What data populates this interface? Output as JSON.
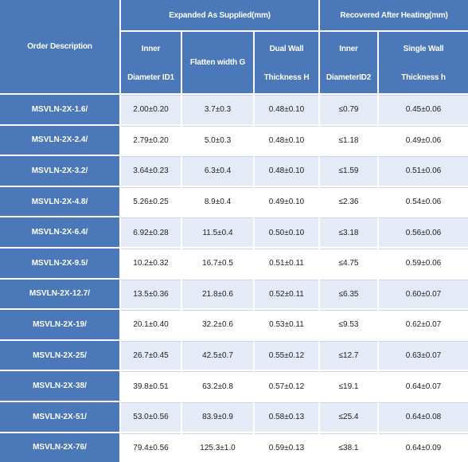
{
  "headers": {
    "order": "Order Description",
    "expanded": "Expanded As Supplied(mm)",
    "recovered": "Recovered After Heating(mm)",
    "col1": [
      "Inner",
      "Diameter ID1"
    ],
    "col2": "Flatten width G",
    "col3": [
      "Dual Wall",
      "Thickness H"
    ],
    "col4": [
      "Inner",
      "DiameterID2"
    ],
    "col5": [
      "Single Wall",
      "Thickness h"
    ]
  },
  "rows": [
    {
      "name": "MSVLN-2X-1.6/",
      "id1": "2.00±0.20",
      "g": "3.7±0.3",
      "h": "0.48±0.10",
      "id2": "≤0.79",
      "t": "0.45±0.06"
    },
    {
      "name": "MSVLN-2X-2.4/",
      "id1": "2.79±0.20",
      "g": "5.0±0.3",
      "h": "0.48±0.10",
      "id2": "≤1.18",
      "t": "0.49±0.06"
    },
    {
      "name": "MSVLN-2X-3.2/",
      "id1": "3.64±0.23",
      "g": "6.3±0.4",
      "h": "0.48±0.10",
      "id2": "≤1.59",
      "t": "0.51±0.06"
    },
    {
      "name": "MSVLN-2X-4.8/",
      "id1": "5.26±0.25",
      "g": "8.9±0.4",
      "h": "0.49±0.10",
      "id2": "≤2.36",
      "t": "0.54±0.06"
    },
    {
      "name": "MSVLN-2X-6.4/",
      "id1": "6.92±0.28",
      "g": "11.5±0.4",
      "h": "0.50±0.10",
      "id2": "≤3.18",
      "t": "0.56±0.06"
    },
    {
      "name": "MSVLN-2X-9.5/",
      "id1": "10.2±0.32",
      "g": "16.7±0.5",
      "h": "0.51±0.11",
      "id2": "≤4.75",
      "t": "0.59±0.06"
    },
    {
      "name": "MSVLN-2X-12.7/",
      "id1": "13.5±0.36",
      "g": "21.8±0.6",
      "h": "0.52±0.11",
      "id2": "≤6.35",
      "t": "0.60±0.07"
    },
    {
      "name": "MSVLN-2X-19/",
      "id1": "20.1±0.40",
      "g": "32.2±0.6",
      "h": "0.53±0.11",
      "id2": "≤9.53",
      "t": "0.62±0.07"
    },
    {
      "name": "MSVLN-2X-25/",
      "id1": "26.7±0.45",
      "g": "42.5±0.7",
      "h": "0.55±0.12",
      "id2": "≤12.7",
      "t": "0.63±0.07"
    },
    {
      "name": "MSVLN-2X-38/",
      "id1": "39.8±0.51",
      "g": "63.2±0.8",
      "h": "0.57±0.12",
      "id2": "≤19.1",
      "t": "0.64±0.07"
    },
    {
      "name": "MSVLN-2X-51/",
      "id1": "53.0±0.56",
      "g": "83.9±0.9",
      "h": "0.58±0.13",
      "id2": "≤25.4",
      "t": "0.64±0.08"
    },
    {
      "name": "MSVLN-2X-76/",
      "id1": "79.4±0.56",
      "g": "125.3±1.0",
      "h": "0.59±0.13",
      "id2": "≤38.1",
      "t": "0.64±0.09"
    }
  ],
  "colors": {
    "header_bg": "#4a78b8",
    "row_light": "#e4ebf6",
    "row_white": "#ffffff",
    "text": "#222222"
  }
}
